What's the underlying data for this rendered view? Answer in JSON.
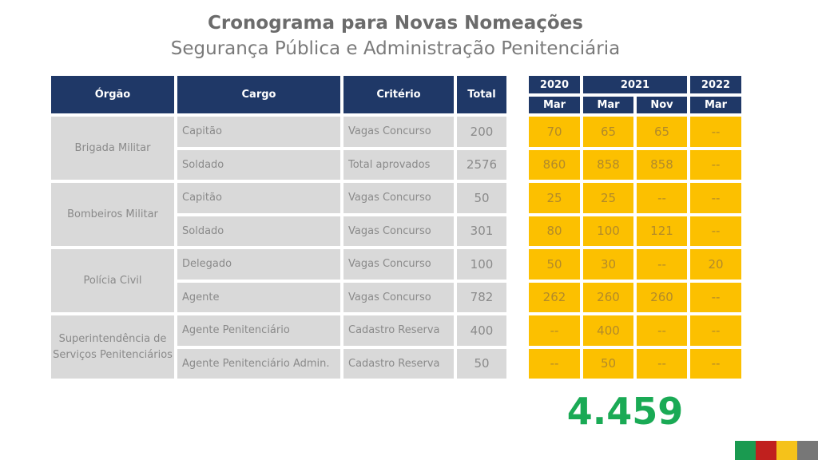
{
  "title": "Cronograma para Novas Nomeações",
  "subtitle": "Segurança Pública e Administração Penitenciária",
  "left_headers": [
    "Órgão",
    "Cargo",
    "Critério",
    "Total"
  ],
  "groups": [
    {
      "orgao": "Brigada Militar",
      "rows": [
        {
          "cargo": "Capitão",
          "criterio": "Vagas Concurso",
          "total": "200"
        },
        {
          "cargo": "Soldado",
          "criterio": "Total aprovados",
          "total": "2576"
        }
      ]
    },
    {
      "orgao": "Bombeiros Militar",
      "rows": [
        {
          "cargo": "Capitão",
          "criterio": "Vagas Concurso",
          "total": "50"
        },
        {
          "cargo": "Soldado",
          "criterio": "Vagas Concurso",
          "total": "301"
        }
      ]
    },
    {
      "orgao": "Polícia Civil",
      "rows": [
        {
          "cargo": "Delegado",
          "criterio": "Vagas Concurso",
          "total": "100"
        },
        {
          "cargo": "Agente",
          "criterio": "Vagas Concurso",
          "total": "782"
        }
      ]
    },
    {
      "orgao": "Superintendência de Serviços Penitenciários",
      "rows": [
        {
          "cargo": "Agente Penitenciário",
          "criterio": "Cadastro Reserva",
          "total": "400"
        },
        {
          "cargo": "Agente Penitenciário Admin.",
          "criterio": "Cadastro Reserva",
          "total": "50"
        }
      ]
    }
  ],
  "years": [
    {
      "label": "2020",
      "span": 1
    },
    {
      "label": "2021",
      "span": 2
    },
    {
      "label": "2022",
      "span": 1
    }
  ],
  "months": [
    "Mar",
    "Mar",
    "Nov",
    "Mar"
  ],
  "schedule": [
    [
      "70",
      "65",
      "65",
      "--"
    ],
    [
      "860",
      "858",
      "858",
      "--"
    ],
    [
      "25",
      "25",
      "--",
      "--"
    ],
    [
      "80",
      "100",
      "121",
      "--"
    ],
    [
      "50",
      "30",
      "--",
      "20"
    ],
    [
      "262",
      "260",
      "260",
      "--"
    ],
    [
      "--",
      "400",
      "--",
      "--"
    ],
    [
      "--",
      "50",
      "--",
      "--"
    ]
  ],
  "grand_total": "4.459",
  "colors": {
    "header": "#1f3867",
    "cell": "#d9d9d9",
    "highlight": "#fcc000",
    "total": "#1aaa55",
    "brand_bar": [
      "#1a9a50",
      "#c0201e",
      "#f5c21a",
      "#777777"
    ]
  }
}
